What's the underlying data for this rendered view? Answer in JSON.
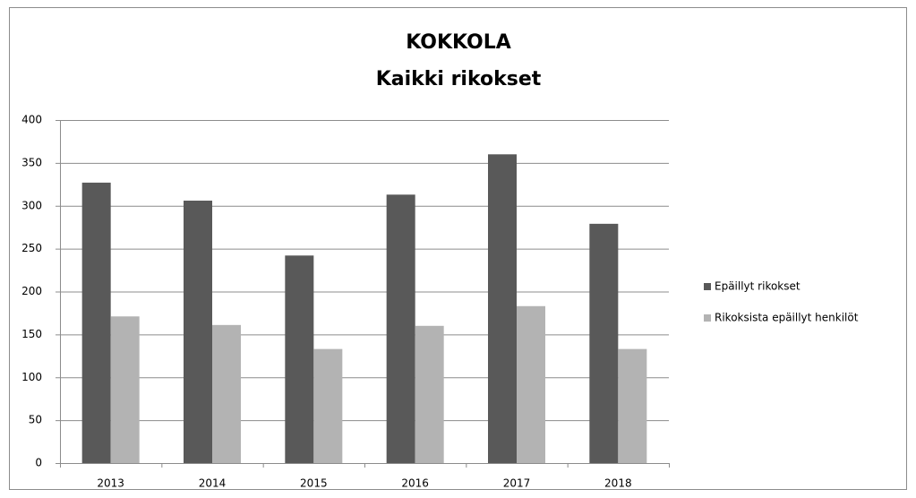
{
  "chart_data": {
    "type": "bar",
    "title": "KOKKOLA",
    "subtitle": "Kaikki rikokset",
    "categories": [
      "2013",
      "2014",
      "2015",
      "2016",
      "2017",
      "2018"
    ],
    "series": [
      {
        "name": "Epäillyt rikokset",
        "color": "#595959",
        "values": [
          327,
          306,
          242,
          313,
          360,
          279
        ]
      },
      {
        "name": "Rikoksista epäillyt henkilöt",
        "color": "#b3b3b3",
        "values": [
          171,
          161,
          133,
          160,
          183,
          133
        ]
      }
    ],
    "ylim": [
      0,
      400
    ],
    "yticks": [
      0,
      50,
      100,
      150,
      200,
      250,
      300,
      350,
      400
    ],
    "grid": true,
    "legend": "right"
  }
}
